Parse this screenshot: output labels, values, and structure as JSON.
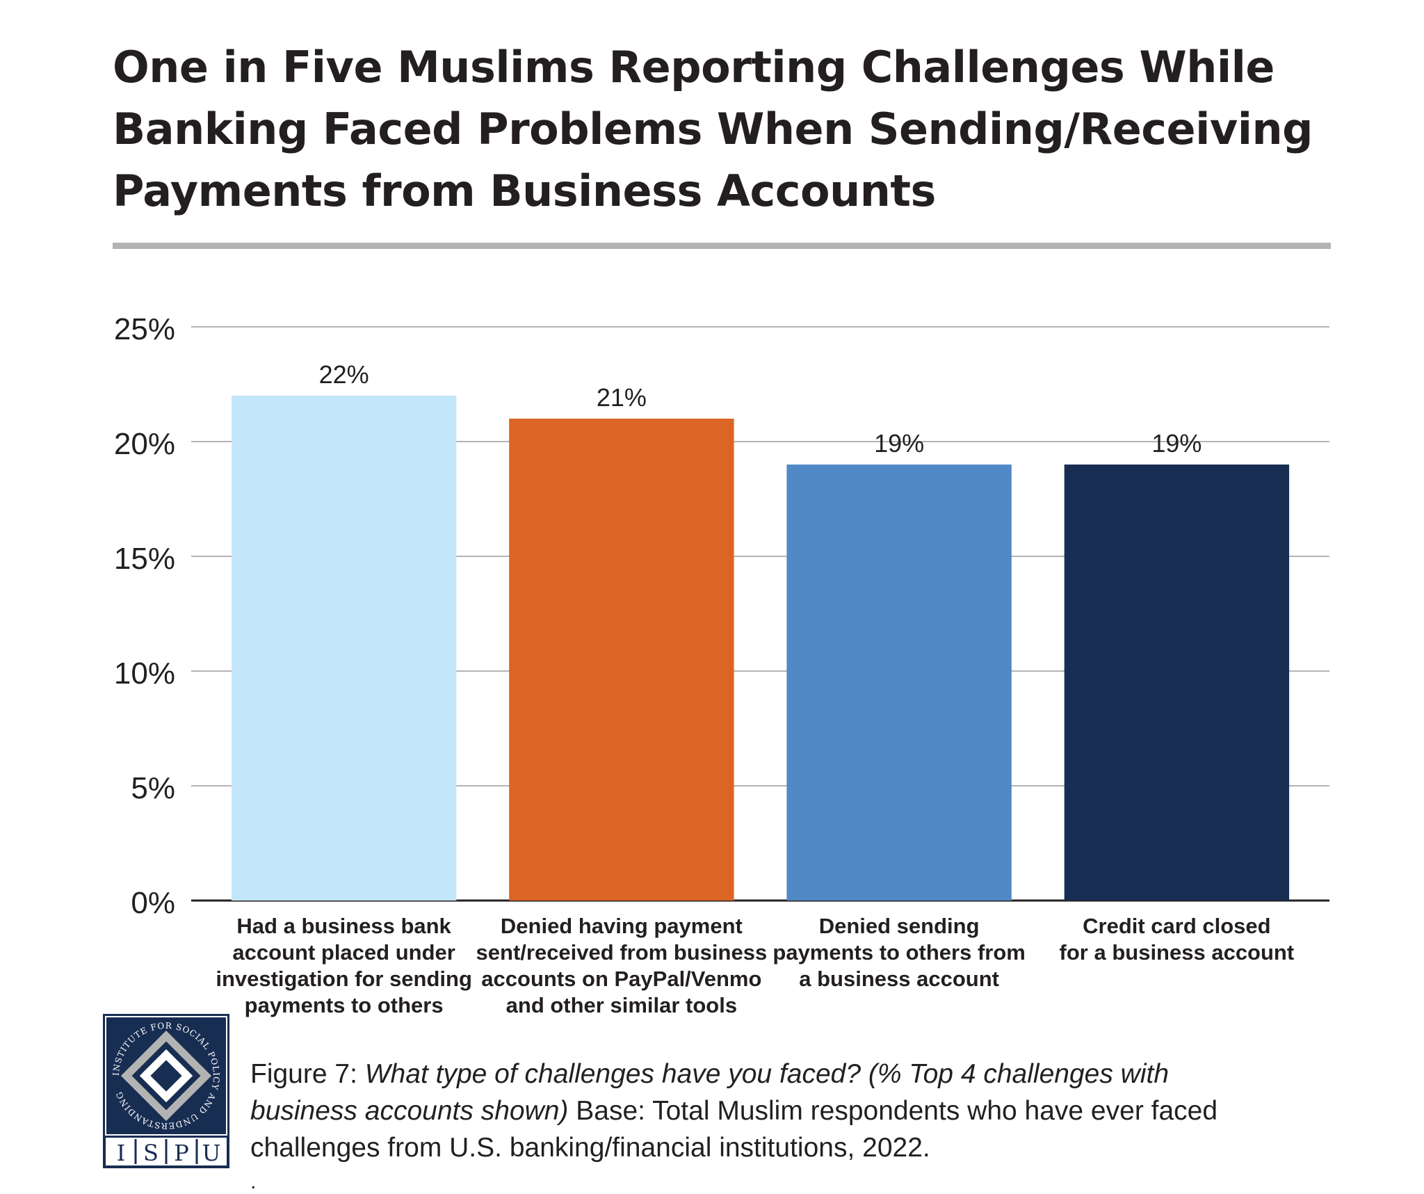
{
  "title": {
    "line1": "One in Five Muslims Reporting Challenges While",
    "line2": "Banking Faced Problems When Sending/Receiving",
    "line3": "Payments from Business Accounts"
  },
  "chart_data": {
    "type": "bar",
    "categories": [
      [
        "Had a business bank",
        "account placed under",
        "investigation for sending",
        "payments to others"
      ],
      [
        "Denied having payment",
        "sent/received from business",
        "accounts on PayPal/Venmo",
        "and other similar tools"
      ],
      [
        "Denied sending",
        "payments to others from",
        "a business account"
      ],
      [
        "Credit card closed",
        "for a business account"
      ]
    ],
    "values": [
      22,
      21,
      19,
      19
    ],
    "value_labels": [
      "22%",
      "21%",
      "19%",
      "19%"
    ],
    "colors": [
      "#c3e6fa",
      "#db6524",
      "#5189c7",
      "#182d52"
    ],
    "ylim": [
      0,
      25
    ],
    "yticks": [
      0,
      5,
      10,
      15,
      20,
      25
    ],
    "ytick_labels": [
      "0%",
      "5%",
      "10%",
      "15%",
      "20%",
      "25%"
    ],
    "grid": true
  },
  "caption": {
    "label": "Figure 7:",
    "question": "What type of challenges have you faced? (% Top 4 challenges with",
    "question_cont": "business accounts shown)",
    "base_a": " Base: Total Muslim respondents who have ever faced",
    "base_b": "challenges from U.S. banking/financial institutions, 2022.",
    "trailing": "."
  },
  "logo": {
    "ring_text": "INSTITUTE FOR SOCIAL POLICY AND UNDERSTANDING",
    "letters": [
      "I",
      "S",
      "P",
      "U"
    ],
    "bg_color": "#182d52"
  }
}
